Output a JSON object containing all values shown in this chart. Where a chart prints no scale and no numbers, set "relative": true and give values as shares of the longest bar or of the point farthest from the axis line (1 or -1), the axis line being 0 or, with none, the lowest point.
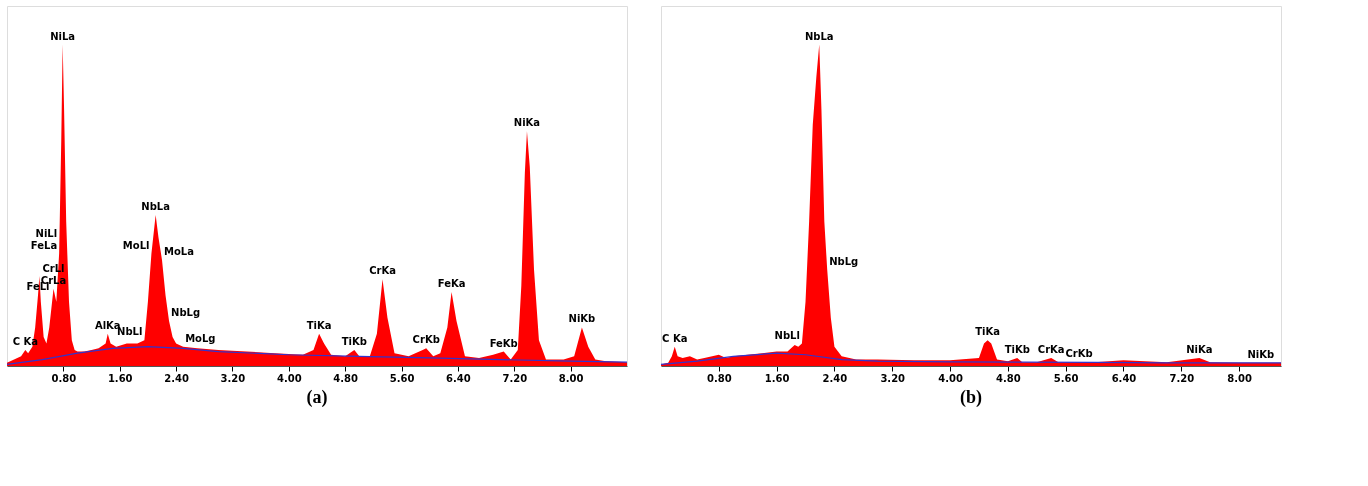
{
  "chart_data": [
    {
      "type": "area",
      "title": "(a)",
      "relative": true,
      "tick_labels": "x",
      "grid": false,
      "xlim": [
        0,
        8.8
      ],
      "xticks": [
        {
          "value": 0.8,
          "label": "0.80"
        },
        {
          "value": 1.6,
          "label": "1.60"
        },
        {
          "value": 2.4,
          "label": "2.40"
        },
        {
          "value": 3.2,
          "label": "3.20"
        },
        {
          "value": 4.0,
          "label": "4.00"
        },
        {
          "value": 4.8,
          "label": "4.80"
        },
        {
          "value": 5.6,
          "label": "5.60"
        },
        {
          "value": 6.4,
          "label": "6.40"
        },
        {
          "value": 7.2,
          "label": "7.20"
        },
        {
          "value": 8.0,
          "label": "8.00"
        }
      ],
      "series": [
        {
          "color": "#ff0000",
          "x": [
            0,
            0.1,
            0.2,
            0.26,
            0.3,
            0.36,
            0.4,
            0.44,
            0.46,
            0.48,
            0.52,
            0.56,
            0.6,
            0.64,
            0.66,
            0.7,
            0.74,
            0.77,
            0.79,
            0.81,
            0.84,
            0.88,
            0.92,
            0.96,
            1.0,
            1.1,
            1.2,
            1.3,
            1.4,
            1.43,
            1.47,
            1.55,
            1.7,
            1.85,
            1.95,
            2.0,
            2.05,
            2.11,
            2.15,
            2.2,
            2.25,
            2.3,
            2.35,
            2.4,
            2.5,
            2.7,
            3.0,
            3.4,
            3.8,
            4.2,
            4.35,
            4.43,
            4.5,
            4.6,
            4.8,
            4.93,
            5.0,
            5.15,
            5.25,
            5.33,
            5.4,
            5.5,
            5.7,
            5.9,
            5.95,
            6.05,
            6.15,
            6.25,
            6.31,
            6.38,
            6.5,
            6.7,
            6.9,
            7.05,
            7.15,
            7.25,
            7.3,
            7.35,
            7.38,
            7.42,
            7.48,
            7.55,
            7.65,
            7.9,
            8.05,
            8.16,
            8.25,
            8.35,
            8.5,
            8.8
          ],
          "values": [
            0.01,
            0.02,
            0.03,
            0.05,
            0.04,
            0.06,
            0.12,
            0.22,
            0.28,
            0.2,
            0.09,
            0.07,
            0.12,
            0.2,
            0.24,
            0.2,
            0.35,
            0.7,
            1,
            0.8,
            0.45,
            0.2,
            0.08,
            0.05,
            0.045,
            0.045,
            0.05,
            0.055,
            0.07,
            0.1,
            0.07,
            0.06,
            0.07,
            0.07,
            0.08,
            0.2,
            0.35,
            0.47,
            0.4,
            0.33,
            0.22,
            0.14,
            0.09,
            0.07,
            0.06,
            0.055,
            0.05,
            0.045,
            0.04,
            0.035,
            0.05,
            0.1,
            0.07,
            0.035,
            0.03,
            0.05,
            0.03,
            0.03,
            0.1,
            0.27,
            0.15,
            0.04,
            0.03,
            0.05,
            0.055,
            0.03,
            0.04,
            0.12,
            0.23,
            0.14,
            0.03,
            0.025,
            0.035,
            0.045,
            0.02,
            0.05,
            0.25,
            0.6,
            0.73,
            0.62,
            0.3,
            0.08,
            0.02,
            0.02,
            0.03,
            0.12,
            0.06,
            0.02,
            0.015,
            0.012
          ]
        },
        {
          "type": "line",
          "color": "#3333cc",
          "x": [
            0,
            0.5,
            1.0,
            1.5,
            2.0,
            2.5,
            3.0,
            4.0,
            5.0,
            6.0,
            7.0,
            8.0,
            8.8
          ],
          "values": [
            0.005,
            0.02,
            0.04,
            0.055,
            0.06,
            0.055,
            0.045,
            0.035,
            0.03,
            0.025,
            0.02,
            0.015,
            0.012
          ]
        }
      ],
      "annotations": [
        {
          "text": "C Ka",
          "x": 0.26,
          "y": 0.05
        },
        {
          "text": "FeLl",
          "x": 0.44,
          "y": 0.22
        },
        {
          "text": "CrLa",
          "x": 0.66,
          "y": 0.24
        },
        {
          "text": "CrLl",
          "x": 0.66,
          "y": 0.24
        },
        {
          "text": "FeLa",
          "x": 0.74,
          "y": 0.35
        },
        {
          "text": "NiLl",
          "x": 0.74,
          "y": 0.35
        },
        {
          "text": "NiLa",
          "x": 0.79,
          "y": 1
        },
        {
          "text": "AlKa",
          "x": 1.43,
          "y": 0.1
        },
        {
          "text": "NbLl",
          "x": 1.95,
          "y": 0.08
        },
        {
          "text": "MoLl",
          "x": 2.05,
          "y": 0.35
        },
        {
          "text": "MoLa",
          "x": 2.2,
          "y": 0.33
        },
        {
          "text": "NbLg",
          "x": 2.3,
          "y": 0.14
        },
        {
          "text": "NbLa",
          "x": 2.11,
          "y": 0.47
        },
        {
          "text": "MoLg",
          "x": 2.5,
          "y": 0.06
        },
        {
          "text": "TiKa",
          "x": 4.43,
          "y": 0.1
        },
        {
          "text": "TiKb",
          "x": 4.93,
          "y": 0.05
        },
        {
          "text": "CrKa",
          "x": 5.33,
          "y": 0.27
        },
        {
          "text": "CrKb",
          "x": 5.95,
          "y": 0.055
        },
        {
          "text": "FeKa",
          "x": 6.31,
          "y": 0.23
        },
        {
          "text": "FeKb",
          "x": 7.05,
          "y": 0.045
        },
        {
          "text": "NiKa",
          "x": 7.38,
          "y": 0.73
        },
        {
          "text": "NiKb",
          "x": 8.16,
          "y": 0.12
        }
      ]
    },
    {
      "type": "area",
      "title": "(b)",
      "relative": true,
      "tick_labels": "x",
      "grid": false,
      "xlim": [
        0,
        8.58
      ],
      "xticks": [
        {
          "value": 0.8,
          "label": "0.80"
        },
        {
          "value": 1.6,
          "label": "1.60"
        },
        {
          "value": 2.4,
          "label": "2.40"
        },
        {
          "value": 3.2,
          "label": "3.20"
        },
        {
          "value": 4.0,
          "label": "4.00"
        },
        {
          "value": 4.8,
          "label": "4.80"
        },
        {
          "value": 5.6,
          "label": "5.60"
        },
        {
          "value": 6.4,
          "label": "6.40"
        },
        {
          "value": 7.2,
          "label": "7.20"
        },
        {
          "value": 8.0,
          "label": "8.00"
        }
      ],
      "series": [
        {
          "color": "#ff0000",
          "x": [
            0,
            0.1,
            0.15,
            0.19,
            0.23,
            0.3,
            0.4,
            0.5,
            0.6,
            0.8,
            0.9,
            1.0,
            1.2,
            1.4,
            1.6,
            1.75,
            1.85,
            1.9,
            1.95,
            2.0,
            2.05,
            2.1,
            2.15,
            2.19,
            2.22,
            2.26,
            2.3,
            2.35,
            2.4,
            2.5,
            2.7,
            3.0,
            3.5,
            4.0,
            4.4,
            4.47,
            4.52,
            4.57,
            4.65,
            4.8,
            4.93,
            5.0,
            5.2,
            5.4,
            5.5,
            6.0,
            6.4,
            7.0,
            7.45,
            7.6,
            8.0,
            8.58
          ],
          "values": [
            0.005,
            0.01,
            0.03,
            0.06,
            0.03,
            0.025,
            0.03,
            0.02,
            0.025,
            0.035,
            0.025,
            0.03,
            0.035,
            0.04,
            0.045,
            0.045,
            0.065,
            0.06,
            0.07,
            0.2,
            0.45,
            0.75,
            0.9,
            1.0,
            0.8,
            0.45,
            0.3,
            0.15,
            0.06,
            0.03,
            0.02,
            0.02,
            0.018,
            0.018,
            0.025,
            0.07,
            0.08,
            0.07,
            0.02,
            0.015,
            0.025,
            0.012,
            0.012,
            0.025,
            0.012,
            0.012,
            0.018,
            0.012,
            0.025,
            0.012,
            0.01,
            0.01
          ]
        },
        {
          "type": "line",
          "color": "#3333cc",
          "x": [
            0,
            0.5,
            1.0,
            1.6,
            2.0,
            2.5,
            3.0,
            4.0,
            5.0,
            6.0,
            7.0,
            8.0,
            8.58
          ],
          "values": [
            0.005,
            0.015,
            0.03,
            0.04,
            0.035,
            0.02,
            0.015,
            0.013,
            0.012,
            0.011,
            0.01,
            0.01,
            0.01
          ]
        }
      ],
      "annotations": [
        {
          "text": "NbLa",
          "x": 2.19,
          "y": 1.0
        },
        {
          "text": "C Ka",
          "x": 0.19,
          "y": 0.06
        },
        {
          "text": "NbLl",
          "x": 1.95,
          "y": 0.07
        },
        {
          "text": "NbLg",
          "x": 2.3,
          "y": 0.3
        },
        {
          "text": "TiKa",
          "x": 4.52,
          "y": 0.08
        },
        {
          "text": "TiKb",
          "x": 4.93,
          "y": 0.025
        },
        {
          "text": "CrKa",
          "x": 5.4,
          "y": 0.025
        },
        {
          "text": "CrKb",
          "x": 6.0,
          "y": 0.012
        },
        {
          "text": "NiKa",
          "x": 7.45,
          "y": 0.025
        },
        {
          "text": "NiKb",
          "x": 8.3,
          "y": 0.01
        }
      ]
    }
  ]
}
